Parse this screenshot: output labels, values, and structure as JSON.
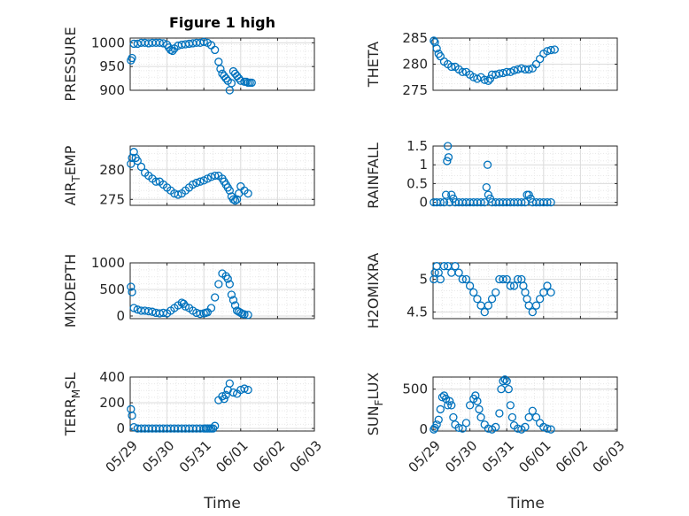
{
  "figure": {
    "title": "Figure 1 high"
  },
  "colors": {
    "marker": "#0072BD",
    "axis": "#262626",
    "grid": "#dcdcdc"
  },
  "chart_data": [
    {
      "type": "scatter",
      "ylabel": "PRESSURE",
      "ylim": [
        900,
        1010
      ],
      "yticks": [
        900,
        950,
        1000
      ],
      "xtick_labels_shown": false,
      "x": [
        0.02,
        0.05,
        0.1,
        0.2,
        0.3,
        0.4,
        0.5,
        0.6,
        0.7,
        0.8,
        0.9,
        1.0,
        1.05,
        1.1,
        1.15,
        1.2,
        1.3,
        1.4,
        1.5,
        1.6,
        1.7,
        1.8,
        1.9,
        2.0,
        2.1,
        2.2,
        2.3,
        2.4,
        2.45,
        2.5,
        2.55,
        2.6,
        2.65,
        2.7,
        2.75,
        2.8,
        2.85,
        2.9,
        2.95,
        3.0,
        3.1,
        3.15,
        3.2,
        3.25,
        3.3
      ],
      "y": [
        963,
        968,
        998,
        998,
        1000,
        1000,
        999,
        1000,
        1000,
        1000,
        999,
        996,
        990,
        985,
        983,
        988,
        994,
        996,
        997,
        998,
        999,
        1000,
        1000,
        1002,
        1000,
        995,
        985,
        960,
        945,
        935,
        930,
        925,
        920,
        900,
        915,
        940,
        935,
        930,
        925,
        920,
        918,
        918,
        916,
        916,
        916
      ]
    },
    {
      "type": "scatter",
      "ylabel": "THETA",
      "ylim": [
        275,
        285
      ],
      "yticks": [
        275,
        280,
        285
      ],
      "xtick_labels_shown": false,
      "x": [
        0.02,
        0.05,
        0.1,
        0.15,
        0.2,
        0.3,
        0.4,
        0.5,
        0.6,
        0.7,
        0.8,
        0.9,
        1.0,
        1.1,
        1.2,
        1.3,
        1.4,
        1.5,
        1.55,
        1.6,
        1.7,
        1.8,
        1.9,
        2.0,
        2.1,
        2.2,
        2.3,
        2.4,
        2.5,
        2.6,
        2.7,
        2.8,
        2.9,
        3.0,
        3.1,
        3.2,
        3.3
      ],
      "y": [
        284.5,
        284.2,
        283.0,
        282.0,
        281.5,
        280.5,
        280.0,
        279.5,
        279.5,
        279.0,
        278.5,
        278.5,
        278.0,
        277.5,
        277.2,
        277.5,
        277.0,
        276.8,
        277.2,
        278.0,
        278.0,
        278.2,
        278.3,
        278.5,
        278.5,
        278.8,
        279.0,
        279.2,
        279.0,
        279.0,
        279.2,
        280.0,
        281.0,
        282.0,
        282.5,
        282.7,
        282.8
      ]
    },
    {
      "type": "scatter",
      "ylabel": "AIR_TEMP",
      "ylim": [
        274,
        284
      ],
      "yticks": [
        275,
        280
      ],
      "xtick_labels_shown": false,
      "x": [
        0.02,
        0.05,
        0.1,
        0.15,
        0.2,
        0.3,
        0.4,
        0.5,
        0.6,
        0.7,
        0.8,
        0.9,
        1.0,
        1.1,
        1.2,
        1.3,
        1.4,
        1.5,
        1.6,
        1.7,
        1.8,
        1.9,
        2.0,
        2.1,
        2.2,
        2.3,
        2.4,
        2.5,
        2.55,
        2.6,
        2.65,
        2.7,
        2.75,
        2.8,
        2.85,
        2.9,
        2.95,
        3.0,
        3.1,
        3.2
      ],
      "y": [
        281,
        282,
        283,
        282,
        281.5,
        280.5,
        279.5,
        279,
        278.5,
        278,
        278,
        277.5,
        277,
        276.5,
        276,
        275.8,
        276,
        276.5,
        277,
        277.5,
        277.8,
        278,
        278.2,
        278.5,
        278.8,
        279,
        279,
        278.5,
        278,
        277.5,
        277,
        276.5,
        275.5,
        275,
        274.8,
        275,
        276,
        277.2,
        276.5,
        276
      ]
    },
    {
      "type": "scatter",
      "ylabel": "RAINFALL",
      "ylim": [
        -0.08,
        1.5
      ],
      "yticks": [
        0,
        0.5,
        1,
        1.5
      ],
      "xtick_labels_shown": false,
      "x": [
        0.02,
        0.1,
        0.2,
        0.3,
        0.35,
        0.38,
        0.4,
        0.42,
        0.45,
        0.5,
        0.55,
        0.6,
        0.7,
        0.8,
        0.9,
        1.0,
        1.1,
        1.2,
        1.3,
        1.4,
        1.45,
        1.48,
        1.5,
        1.55,
        1.6,
        1.7,
        1.8,
        1.9,
        2.0,
        2.1,
        2.2,
        2.3,
        2.4,
        2.5,
        2.55,
        2.6,
        2.65,
        2.7,
        2.8,
        2.9,
        3.0,
        3.1,
        3.2
      ],
      "y": [
        0,
        0,
        0,
        0,
        0.2,
        1.1,
        1.5,
        1.2,
        0,
        0.2,
        0.1,
        0,
        0,
        0,
        0,
        0,
        0,
        0,
        0,
        0,
        0.4,
        1.0,
        0.2,
        0.1,
        0,
        0,
        0,
        0,
        0,
        0,
        0,
        0,
        0,
        0,
        0.2,
        0.2,
        0.1,
        0,
        0,
        0,
        0,
        0,
        0
      ]
    },
    {
      "type": "scatter",
      "ylabel": "MIXDEPTH",
      "ylim": [
        -50,
        1000
      ],
      "yticks": [
        0,
        500,
        1000
      ],
      "xtick_labels_shown": false,
      "x": [
        0.02,
        0.05,
        0.1,
        0.2,
        0.3,
        0.4,
        0.5,
        0.6,
        0.7,
        0.8,
        0.9,
        1.0,
        1.1,
        1.2,
        1.3,
        1.4,
        1.45,
        1.5,
        1.6,
        1.7,
        1.8,
        1.9,
        2.0,
        2.05,
        2.1,
        2.2,
        2.3,
        2.4,
        2.5,
        2.6,
        2.65,
        2.7,
        2.75,
        2.8,
        2.85,
        2.9,
        2.95,
        3.0,
        3.05,
        3.1,
        3.2
      ],
      "y": [
        550,
        450,
        150,
        120,
        100,
        100,
        90,
        80,
        60,
        50,
        60,
        50,
        100,
        150,
        200,
        250,
        230,
        180,
        150,
        100,
        60,
        40,
        50,
        60,
        70,
        150,
        350,
        600,
        800,
        750,
        700,
        600,
        400,
        300,
        200,
        100,
        80,
        60,
        40,
        30,
        20
      ]
    },
    {
      "type": "scatter",
      "ylabel": "H2OMIXRA",
      "ylim": [
        4.4,
        5.25
      ],
      "yticks": [
        4.5,
        5
      ],
      "xtick_labels_shown": false,
      "x": [
        0.02,
        0.05,
        0.1,
        0.15,
        0.2,
        0.3,
        0.4,
        0.5,
        0.6,
        0.7,
        0.8,
        0.9,
        1.0,
        1.1,
        1.2,
        1.3,
        1.4,
        1.5,
        1.6,
        1.7,
        1.8,
        1.9,
        2.0,
        2.1,
        2.2,
        2.3,
        2.4,
        2.45,
        2.5,
        2.55,
        2.6,
        2.7,
        2.8,
        2.9,
        3.0,
        3.1,
        3.2
      ],
      "y": [
        5.0,
        5.1,
        5.2,
        5.1,
        5.0,
        5.2,
        5.2,
        5.1,
        5.2,
        5.1,
        5.0,
        5.0,
        4.9,
        4.8,
        4.7,
        4.6,
        4.5,
        4.6,
        4.7,
        4.8,
        5.0,
        5.0,
        5.0,
        4.9,
        4.9,
        5.0,
        5.0,
        4.9,
        4.8,
        4.7,
        4.6,
        4.5,
        4.6,
        4.7,
        4.8,
        4.9,
        4.8
      ]
    },
    {
      "type": "scatter",
      "ylabel": "TERR_MSL",
      "ylim": [
        -20,
        400
      ],
      "yticks": [
        0,
        200,
        400
      ],
      "xtick_labels_shown": true,
      "x": [
        0.02,
        0.05,
        0.1,
        0.2,
        0.3,
        0.4,
        0.5,
        0.6,
        0.7,
        0.8,
        0.9,
        1.0,
        1.1,
        1.2,
        1.3,
        1.4,
        1.5,
        1.6,
        1.7,
        1.8,
        1.9,
        2.0,
        2.05,
        2.1,
        2.15,
        2.2,
        2.25,
        2.3,
        2.4,
        2.5,
        2.55,
        2.6,
        2.65,
        2.7,
        2.8,
        2.9,
        3.0,
        3.1,
        3.2
      ],
      "y": [
        150,
        100,
        10,
        0,
        0,
        0,
        0,
        0,
        0,
        0,
        0,
        0,
        0,
        0,
        0,
        0,
        0,
        0,
        0,
        0,
        0,
        0,
        0,
        0,
        0,
        0,
        0,
        20,
        220,
        250,
        230,
        260,
        300,
        350,
        280,
        270,
        300,
        310,
        300
      ]
    },
    {
      "type": "scatter",
      "ylabel": "SUN_FLUX",
      "ylim": [
        -20,
        650
      ],
      "yticks": [
        0,
        500
      ],
      "xtick_labels_shown": true,
      "x": [
        0.02,
        0.05,
        0.1,
        0.15,
        0.2,
        0.25,
        0.3,
        0.35,
        0.4,
        0.45,
        0.5,
        0.55,
        0.6,
        0.7,
        0.8,
        0.9,
        1.0,
        1.1,
        1.15,
        1.2,
        1.25,
        1.3,
        1.4,
        1.5,
        1.6,
        1.7,
        1.8,
        1.85,
        1.9,
        1.95,
        2.0,
        2.05,
        2.1,
        2.15,
        2.2,
        2.3,
        2.4,
        2.5,
        2.6,
        2.7,
        2.8,
        2.9,
        3.0,
        3.1,
        3.2
      ],
      "y": [
        0,
        20,
        60,
        120,
        250,
        400,
        420,
        380,
        300,
        350,
        300,
        150,
        60,
        20,
        10,
        80,
        300,
        380,
        420,
        350,
        250,
        150,
        60,
        10,
        0,
        30,
        200,
        500,
        600,
        620,
        600,
        500,
        300,
        150,
        50,
        10,
        0,
        30,
        150,
        230,
        150,
        80,
        30,
        10,
        0
      ]
    }
  ],
  "x_axis": {
    "tick_values": [
      0,
      1,
      2,
      3,
      4,
      5
    ],
    "tick_labels": [
      "05/29",
      "05/30",
      "05/31",
      "06/01",
      "06/02",
      "06/03"
    ],
    "xlim": [
      0,
      5
    ],
    "xlabel": "Time"
  }
}
